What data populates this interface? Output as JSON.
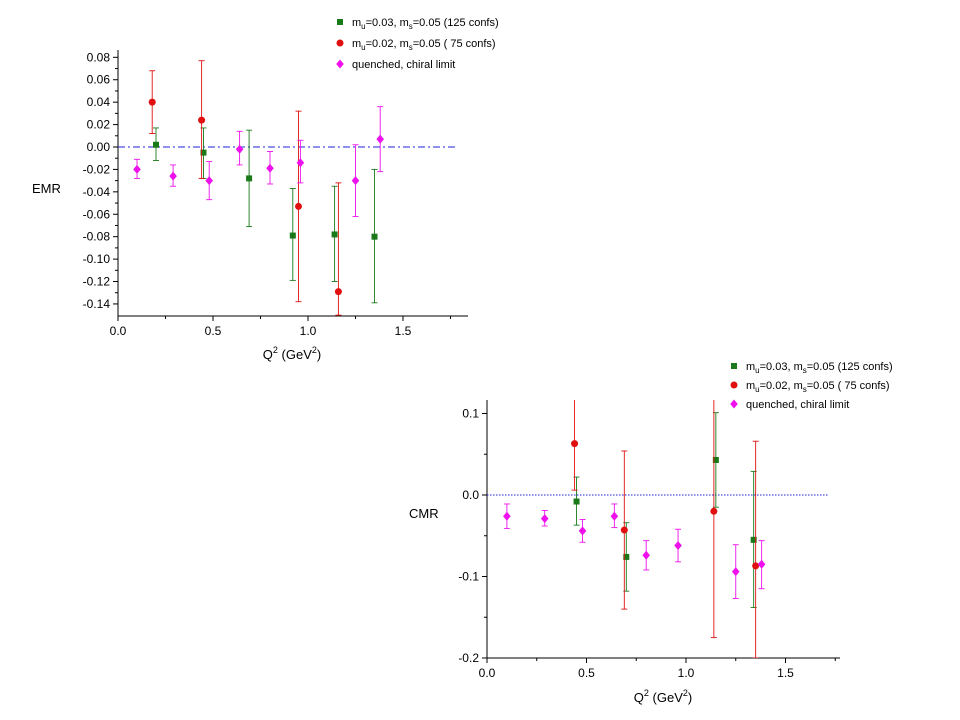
{
  "chart_data": [
    {
      "type": "scatter",
      "ylabel": "EMR",
      "xlabel_main": "Q",
      "xlabel_sup": "2",
      "xlabel_unit_pre": " (GeV",
      "xlabel_unit_sup": "2",
      "xlabel_unit_post": ")",
      "xlim": [
        0,
        1.75
      ],
      "ylim": [
        -0.15,
        0.09
      ],
      "xticks": [
        0.0,
        0.5,
        1.0,
        1.5
      ],
      "xticklabels": [
        "0.0",
        "0.5",
        "1.0",
        "1.5"
      ],
      "yticks": [
        0.08,
        0.06,
        0.04,
        0.02,
        0.0,
        -0.02,
        -0.04,
        -0.06,
        -0.08,
        -0.1,
        -0.12,
        -0.14
      ],
      "yticklabels": [
        "0.08",
        "0.06",
        "0.04",
        "0.02",
        "0.00",
        "-0.02",
        "-0.04",
        "-0.06",
        "-0.08",
        "-0.10",
        "-0.12",
        "-0.14"
      ],
      "zero_line": {
        "style": "dashdot",
        "color": "#1f1fd8"
      },
      "legend_position": "top-right",
      "series": [
        {
          "legend": {
            "sym1": "m",
            "sub1": "u",
            "mid": "=0.03, m",
            "sub2": "s",
            "tail": "=0.05  (125 confs)"
          },
          "marker": "square",
          "color": "#1a7a1a",
          "points": [
            {
              "x": 0.2,
              "y": 0.002,
              "ylo": -0.012,
              "yhi": 0.017
            },
            {
              "x": 0.45,
              "y": -0.005,
              "ylo": -0.028,
              "yhi": 0.017
            },
            {
              "x": 0.69,
              "y": -0.028,
              "ylo": -0.071,
              "yhi": 0.015
            },
            {
              "x": 0.92,
              "y": -0.079,
              "ylo": -0.119,
              "yhi": -0.037
            },
            {
              "x": 1.14,
              "y": -0.078,
              "ylo": -0.12,
              "yhi": -0.035
            },
            {
              "x": 1.35,
              "y": -0.08,
              "ylo": -0.139,
              "yhi": -0.02
            }
          ]
        },
        {
          "legend": {
            "sym1": "m",
            "sub1": "u",
            "mid": "=0.02, m",
            "sub2": "s",
            "tail": "=0.05  ( 75 confs)"
          },
          "marker": "circle",
          "color": "#e01010",
          "points": [
            {
              "x": 0.18,
              "y": 0.04,
              "ylo": 0.012,
              "yhi": 0.068
            },
            {
              "x": 0.44,
              "y": 0.024,
              "ylo": -0.028,
              "yhi": 0.077
            },
            {
              "x": 0.95,
              "y": -0.053,
              "ylo": -0.138,
              "yhi": 0.032
            },
            {
              "x": 1.16,
              "y": -0.129,
              "ylo": -0.15,
              "yhi": -0.032
            }
          ]
        },
        {
          "legend": {
            "sym1": "",
            "sub1": "",
            "mid": "quenched, chiral limit",
            "sub2": "",
            "tail": ""
          },
          "marker": "diamond",
          "color": "#ee11ee",
          "points": [
            {
              "x": 0.1,
              "y": -0.02,
              "ylo": -0.028,
              "yhi": -0.011
            },
            {
              "x": 0.29,
              "y": -0.026,
              "ylo": -0.035,
              "yhi": -0.016
            },
            {
              "x": 0.48,
              "y": -0.03,
              "ylo": -0.047,
              "yhi": -0.013
            },
            {
              "x": 0.64,
              "y": -0.002,
              "ylo": -0.016,
              "yhi": 0.014
            },
            {
              "x": 0.8,
              "y": -0.019,
              "ylo": -0.033,
              "yhi": -0.004
            },
            {
              "x": 0.96,
              "y": -0.014,
              "ylo": -0.032,
              "yhi": 0.006
            },
            {
              "x": 1.25,
              "y": -0.03,
              "ylo": -0.062,
              "yhi": 0.002
            },
            {
              "x": 1.38,
              "y": 0.007,
              "ylo": -0.022,
              "yhi": 0.036
            }
          ]
        }
      ]
    },
    {
      "type": "scatter",
      "ylabel": "CMR",
      "xlabel_main": "Q",
      "xlabel_sup": "2",
      "xlabel_unit_pre": " (GeV",
      "xlabel_unit_sup": "2",
      "xlabel_unit_post": ")",
      "xlim": [
        0,
        1.8
      ],
      "ylim": [
        -0.2,
        0.12
      ],
      "xticks": [
        0.0,
        0.5,
        1.0,
        1.5
      ],
      "xticklabels": [
        "0.0",
        "0.5",
        "1.0",
        "1.5"
      ],
      "yticks": [
        0.1,
        0.0,
        -0.1,
        -0.2
      ],
      "yticklabels": [
        "0.1",
        "0.0",
        "-0.1",
        "-0.2"
      ],
      "zero_line": {
        "style": "dotted",
        "color": "#1f1fd8"
      },
      "legend_position": "top-right",
      "series": [
        {
          "legend": {
            "sym1": "m",
            "sub1": "u",
            "mid": "=0.03, m",
            "sub2": "s",
            "tail": "=0.05  (125 confs)"
          },
          "marker": "square",
          "color": "#1a7a1a",
          "points": [
            {
              "x": 0.45,
              "y": -0.008,
              "ylo": -0.037,
              "yhi": 0.022
            },
            {
              "x": 0.7,
              "y": -0.076,
              "ylo": -0.118,
              "yhi": -0.034
            },
            {
              "x": 1.15,
              "y": 0.043,
              "ylo": -0.015,
              "yhi": 0.101
            },
            {
              "x": 1.34,
              "y": -0.055,
              "ylo": -0.138,
              "yhi": 0.029
            }
          ]
        },
        {
          "legend": {
            "sym1": "m",
            "sub1": "u",
            "mid": "=0.02, m",
            "sub2": "s",
            "tail": "=0.05  ( 75 confs)"
          },
          "marker": "circle",
          "color": "#e01010",
          "points": [
            {
              "x": 0.44,
              "y": 0.063,
              "ylo": 0.006,
              "yhi": 0.12
            },
            {
              "x": 0.69,
              "y": -0.043,
              "ylo": -0.14,
              "yhi": 0.054
            },
            {
              "x": 1.14,
              "y": -0.02,
              "ylo": -0.175,
              "yhi": 0.12
            },
            {
              "x": 1.35,
              "y": -0.087,
              "ylo": -0.2,
              "yhi": 0.066
            }
          ]
        },
        {
          "legend": {
            "sym1": "",
            "sub1": "",
            "mid": "quenched, chiral limit",
            "sub2": "",
            "tail": ""
          },
          "marker": "diamond",
          "color": "#ee11ee",
          "points": [
            {
              "x": 0.1,
              "y": -0.026,
              "ylo": -0.041,
              "yhi": -0.011
            },
            {
              "x": 0.29,
              "y": -0.029,
              "ylo": -0.038,
              "yhi": -0.019
            },
            {
              "x": 0.48,
              "y": -0.044,
              "ylo": -0.058,
              "yhi": -0.03
            },
            {
              "x": 0.64,
              "y": -0.026,
              "ylo": -0.04,
              "yhi": -0.011
            },
            {
              "x": 0.8,
              "y": -0.074,
              "ylo": -0.092,
              "yhi": -0.056
            },
            {
              "x": 0.96,
              "y": -0.062,
              "ylo": -0.082,
              "yhi": -0.042
            },
            {
              "x": 1.25,
              "y": -0.094,
              "ylo": -0.127,
              "yhi": -0.061
            },
            {
              "x": 1.38,
              "y": -0.085,
              "ylo": -0.115,
              "yhi": -0.056
            }
          ]
        }
      ]
    }
  ]
}
